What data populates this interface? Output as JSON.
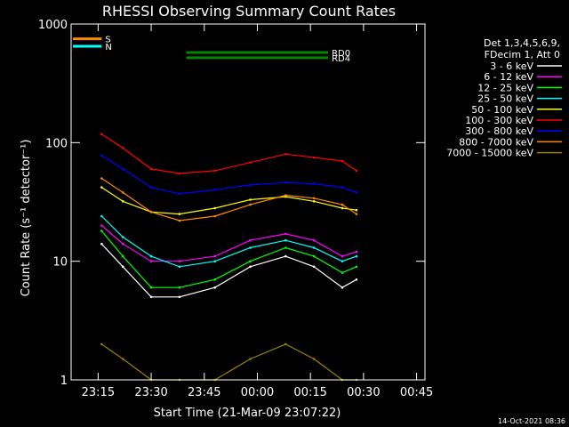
{
  "chart_data": {
    "type": "line",
    "title": "RHESSI Observing Summary Count Rates",
    "xlabel": "Start Time (21-Mar-09 23:07:22)",
    "ylabel": "Count Rate (s⁻¹ detector⁻¹)",
    "yscale": "log",
    "ylim": [
      1,
      1000
    ],
    "xlim_min": [
      -52.63,
      47.37
    ],
    "xticks": [
      {
        "label": "23:15",
        "value": -45
      },
      {
        "label": "23:30",
        "value": -30
      },
      {
        "label": "23:45",
        "value": -15
      },
      {
        "label": "00:00",
        "value": 0
      },
      {
        "label": "00:15",
        "value": 15
      },
      {
        "label": "00:30",
        "value": 30
      },
      {
        "label": "00:45",
        "value": 45
      }
    ],
    "yticks": [
      {
        "label": "1",
        "value": 1
      },
      {
        "label": "10",
        "value": 10
      },
      {
        "label": "100",
        "value": 100
      },
      {
        "label": "1000",
        "value": 1000
      }
    ],
    "legend_header": [
      "Det 1,3,4,5,6,9,",
      "FDecim 1, Att 0"
    ],
    "legend_position": "right",
    "series": [
      {
        "name": "3 - 6 keV",
        "color": "#ffffff",
        "values": [
          14,
          9,
          5,
          5,
          6,
          9,
          11,
          9,
          6,
          7
        ]
      },
      {
        "name": "6 - 12 keV",
        "color": "#ff00ff",
        "values": [
          20,
          14,
          10,
          10,
          11,
          15,
          17,
          15,
          11,
          12
        ]
      },
      {
        "name": "12 - 25 keV",
        "color": "#00ff00",
        "values": [
          18,
          11,
          6,
          6,
          7,
          10,
          13,
          11,
          8,
          9
        ]
      },
      {
        "name": "25 - 50 keV",
        "color": "#00ffff",
        "values": [
          24,
          16,
          11,
          9,
          10,
          13,
          15,
          13,
          10,
          11
        ]
      },
      {
        "name": "50 - 100 keV",
        "color": "#ffff00",
        "values": [
          42,
          32,
          26,
          25,
          28,
          33,
          35,
          32,
          28,
          27
        ]
      },
      {
        "name": "100 - 300 keV",
        "color": "#ff0000",
        "values": [
          118,
          90,
          60,
          55,
          58,
          68,
          80,
          75,
          70,
          58
        ]
      },
      {
        "name": "300 - 800 keV",
        "color": "#0000ff",
        "values": [
          78,
          60,
          42,
          37,
          40,
          44,
          46,
          45,
          42,
          38
        ]
      },
      {
        "name": "800 - 7000 keV",
        "color": "#ff8800",
        "values": [
          50,
          38,
          26,
          22,
          24,
          30,
          36,
          34,
          30,
          25
        ]
      },
      {
        "name": "7000 - 15000 keV",
        "color": "#a08000",
        "values": [
          2,
          1.5,
          1,
          1,
          1,
          1.5,
          2,
          1.5,
          1,
          1
        ]
      }
    ],
    "series_times_min": [
      -44,
      -38,
      -30,
      -22,
      -12,
      -2,
      8,
      16,
      24,
      28
    ],
    "annotations": [
      {
        "label": "S",
        "color": "#ff8800",
        "y": 750
      },
      {
        "label": "N",
        "color": "#00ffff",
        "y": 650
      },
      {
        "label": "RD0",
        "color": "#008800",
        "y": 575
      },
      {
        "label": "RD4",
        "color": "#008800",
        "y": 520
      }
    ],
    "timestamp": "14-Oct-2021 08:36"
  }
}
